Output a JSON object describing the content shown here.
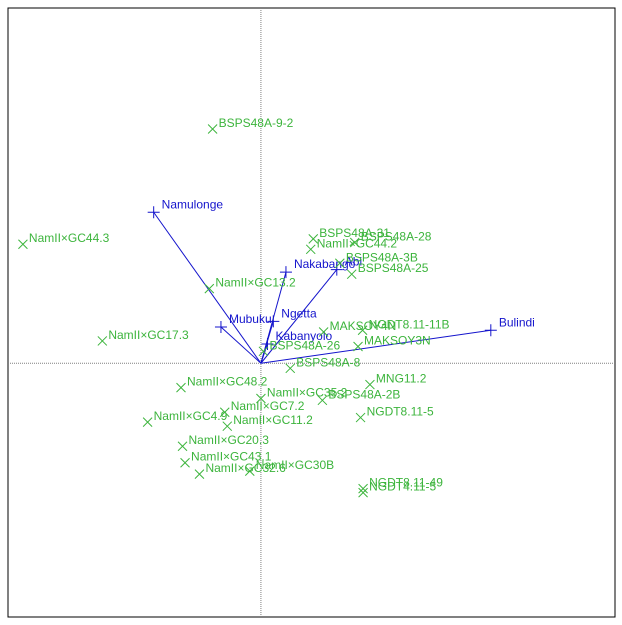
{
  "chart_data": {
    "type": "biplot",
    "title": "",
    "xlabel": "",
    "ylabel": "",
    "xlim": [
      -10,
      14
    ],
    "ylim": [
      -10,
      14
    ],
    "grid": false,
    "legend": "none",
    "colors": {
      "genotype": "#3cb43c",
      "environment": "#1414cc",
      "axis": "#808080",
      "frame": "#000000"
    },
    "genotypes": [
      {
        "label": "BSPS48A-9-2",
        "x": -1.91,
        "y": 9.23
      },
      {
        "label": "NamII×GC44.3",
        "x": -9.41,
        "y": 4.69
      },
      {
        "label": "BSPS48A-31",
        "x": 2.07,
        "y": 4.9
      },
      {
        "label": "BSPS48A-28",
        "x": 3.71,
        "y": 4.76
      },
      {
        "label": "NamII×GC44.2",
        "x": 1.97,
        "y": 4.49
      },
      {
        "label": "BSPS48A-3B",
        "x": 3.12,
        "y": 3.94
      },
      {
        "label": "BSPS48A-25",
        "x": 3.59,
        "y": 3.51
      },
      {
        "label": "NamII×GC13.2",
        "x": -2.04,
        "y": 2.94
      },
      {
        "label": "NamII×GC17.3",
        "x": -6.27,
        "y": 0.88
      },
      {
        "label": "MAKSOY4N",
        "x": 2.48,
        "y": 1.23
      },
      {
        "label": "NGDT8.11-11B",
        "x": 4.02,
        "y": 1.3
      },
      {
        "label": "MAKSOY3N",
        "x": 3.84,
        "y": 0.66
      },
      {
        "label": "BSPS48A-26",
        "x": 0.1,
        "y": 0.47
      },
      {
        "label": "BSPS48A-8",
        "x": 1.16,
        "y": -0.2
      },
      {
        "label": "NamII×GC48.2",
        "x": -3.16,
        "y": -0.96
      },
      {
        "label": "MNG11.2",
        "x": 4.31,
        "y": -0.84
      },
      {
        "label": "NamII×GC35.2",
        "x": 0.0,
        "y": -1.39
      },
      {
        "label": "BSPS48A-2B",
        "x": 2.43,
        "y": -1.46
      },
      {
        "label": "NamII×GC7.2",
        "x": -1.43,
        "y": -1.93
      },
      {
        "label": "NamII×GC4.9",
        "x": -4.48,
        "y": -2.32
      },
      {
        "label": "NamII×GC11.2",
        "x": -1.33,
        "y": -2.48
      },
      {
        "label": "NGDT8.11-5",
        "x": 3.94,
        "y": -2.14
      },
      {
        "label": "NamII×GC20.3",
        "x": -3.1,
        "y": -3.27
      },
      {
        "label": "NamII×GC43.1",
        "x": -3.0,
        "y": -3.92
      },
      {
        "label": "NamII×GC32.6",
        "x": -2.43,
        "y": -4.37
      },
      {
        "label": "NamII×GC30B",
        "x": -0.44,
        "y": -4.25
      },
      {
        "label": "NGDT8.11-49",
        "x": 4.04,
        "y": -4.94
      },
      {
        "label": "NGDT4.11-5",
        "x": 4.04,
        "y": -5.1
      }
    ],
    "environments": [
      {
        "label": "Namulonge",
        "x": -4.24,
        "y": 5.95
      },
      {
        "label": "Nakabango",
        "x": 0.99,
        "y": 3.59
      },
      {
        "label": "Abi",
        "x": 3.0,
        "y": 3.69
      },
      {
        "label": "Ngetta",
        "x": 0.49,
        "y": 1.65
      },
      {
        "label": "Mubuku",
        "x": -1.58,
        "y": 1.43
      },
      {
        "label": "Kabanyolo",
        "x": 0.26,
        "y": 0.76
      },
      {
        "label": "Bulindi",
        "x": 9.09,
        "y": 1.3
      }
    ]
  }
}
